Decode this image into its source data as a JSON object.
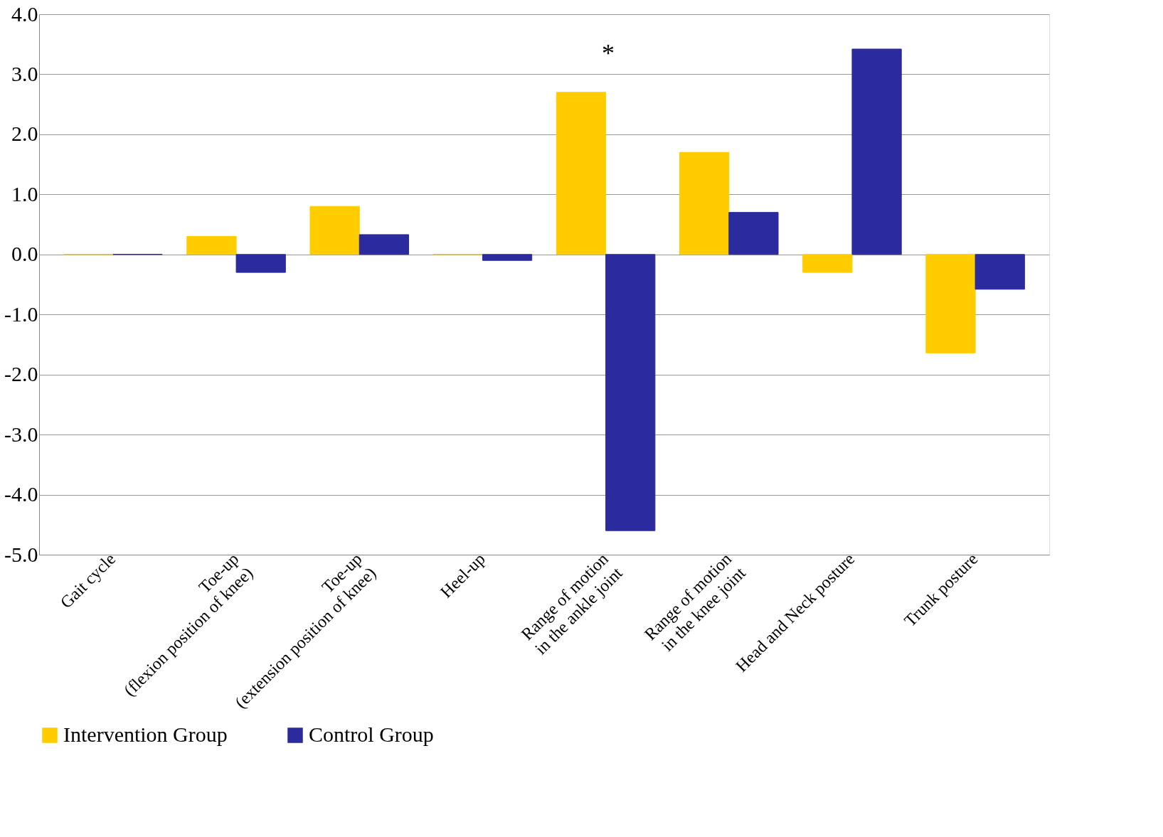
{
  "chart_data": {
    "type": "bar",
    "categories": [
      "Gait cycle",
      "Toe-up\n(flexion position of knee)",
      "Toe-up\n(extension position of knee)",
      "Heel-up",
      "Range of motion\nin the ankle joint",
      "Range of motion\nin the knee joint",
      "Head and Neck posture",
      "Trunk posture"
    ],
    "series": [
      {
        "name": "Intervention Group",
        "color": "#ffcc00",
        "values": [
          0,
          0.3,
          0.8,
          0,
          2.7,
          1.7,
          -0.3,
          -1.64
        ]
      },
      {
        "name": "Control Group",
        "color": "#2b2b9e",
        "values": [
          0,
          -0.3,
          0.33,
          -0.1,
          -4.6,
          0.7,
          3.42,
          -0.58
        ]
      }
    ],
    "ylim": [
      -5,
      4
    ],
    "yticks": [
      {
        "value": -5,
        "label": "-5.0"
      },
      {
        "value": -4,
        "label": "-4.0"
      },
      {
        "value": -3,
        "label": "-3.0"
      },
      {
        "value": -2,
        "label": "-2.0"
      },
      {
        "value": -1,
        "label": "-1.0"
      },
      {
        "value": 0,
        "label": "0.0"
      },
      {
        "value": 1,
        "label": "1.0"
      },
      {
        "value": 2,
        "label": "2.0"
      },
      {
        "value": 3,
        "label": "3.0"
      },
      {
        "value": 4,
        "label": "4.0"
      }
    ],
    "annotations": [
      "*"
    ],
    "grid": "y",
    "legend": "bottom"
  }
}
